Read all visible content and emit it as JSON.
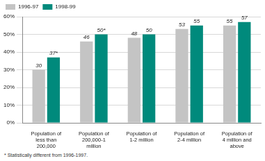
{
  "chart_data": {
    "type": "bar",
    "categories": [
      "Population of less than 200,000",
      "Population of 200,000-1 million",
      "Population of 1-2 million",
      "Population of 2-4 million",
      "Population of 4 million and above"
    ],
    "series": [
      {
        "name": "1996-97",
        "color": "#c4c4c4",
        "values": [
          30,
          46,
          48,
          53,
          55
        ],
        "value_labels": [
          "30",
          "46",
          "48",
          "53",
          "55"
        ]
      },
      {
        "name": "1998-99",
        "color": "#008a7c",
        "values": [
          37,
          50,
          50,
          55,
          57
        ],
        "value_labels": [
          "37*",
          "50*",
          "50",
          "55",
          "57"
        ]
      }
    ],
    "ylim": [
      0,
      60
    ],
    "yticks": [
      {
        "value": 0,
        "label": "0%"
      },
      {
        "value": 10,
        "label": "10%"
      },
      {
        "value": 20,
        "label": "20%"
      },
      {
        "value": 30,
        "label": "30%"
      },
      {
        "value": 40,
        "label": "40%"
      },
      {
        "value": 50,
        "label": "50%"
      },
      {
        "value": 60,
        "label": "60%"
      }
    ],
    "grid": true,
    "legend": "top-left",
    "data_labels": true,
    "annotations": [
      "* Statistically different from 1996-1997."
    ]
  }
}
